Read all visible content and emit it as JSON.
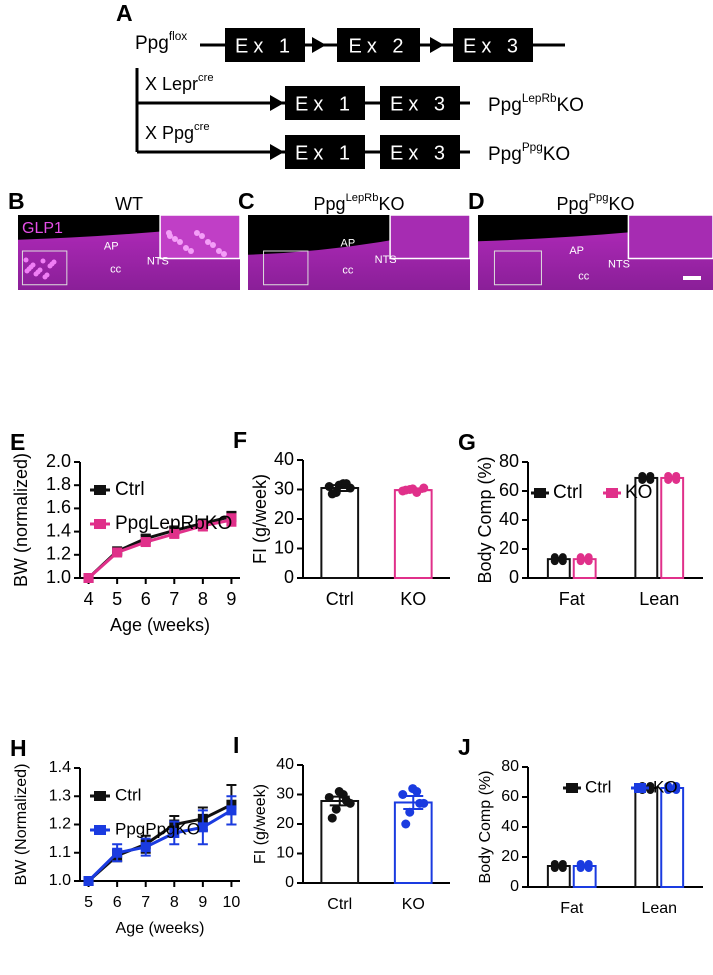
{
  "panel_a": {
    "label": "A",
    "flox": {
      "base": "Ppg",
      "sup": "flox"
    },
    "exons": [
      "Ex 1",
      "Ex 2",
      "Ex 3"
    ],
    "crosses": [
      {
        "prefix": "X Lepr",
        "sup": "cre",
        "exons": [
          "Ex 1",
          "Ex 3"
        ],
        "result": {
          "base": "Ppg",
          "sup": "LepRb",
          "suffix": "KO"
        }
      },
      {
        "prefix": "X Ppg",
        "sup": "cre",
        "exons": [
          "Ex 1",
          "Ex 3"
        ],
        "result": {
          "base": "Ppg",
          "sup": "Ppg",
          "suffix": "KO"
        }
      }
    ]
  },
  "micrographs": [
    {
      "label": "B",
      "title": {
        "base": "WT"
      },
      "stain": "GLP1",
      "regions": [
        "AP",
        "NTS",
        "cc"
      ]
    },
    {
      "label": "C",
      "title": {
        "base": "Ppg",
        "sup": "LepRb",
        "suffix": "KO"
      },
      "regions": [
        "AP",
        "NTS",
        "cc"
      ]
    },
    {
      "label": "D",
      "title": {
        "base": "Ppg",
        "sup": "Ppg",
        "suffix": "KO"
      },
      "regions": [
        "AP",
        "NTS",
        "cc"
      ]
    }
  ],
  "chart_data": [
    {
      "type": "line",
      "panel": "E",
      "x_label": "Age (weeks)",
      "y_label": "BW (normalized)",
      "x": [
        4,
        5,
        6,
        7,
        8,
        9
      ],
      "xlim": [
        3.7,
        9.3
      ],
      "xticks": [
        4,
        5,
        6,
        7,
        8,
        9
      ],
      "ylim": [
        1.0,
        2.0
      ],
      "yticks": [
        {
          "value": 1.0,
          "label": "1.0"
        },
        {
          "value": 1.2,
          "label": "1.2"
        },
        {
          "value": 1.4,
          "label": "1.4"
        },
        {
          "value": 1.6,
          "label": "1.6"
        },
        {
          "value": 1.8,
          "label": "1.8"
        },
        {
          "value": 2.0,
          "label": "2.0"
        }
      ],
      "series": [
        {
          "name": "Ctrl",
          "color": "#111111",
          "values": [
            1.0,
            1.23,
            1.34,
            1.41,
            1.47,
            1.53
          ],
          "errors": [
            0,
            0.02,
            0.03,
            0.03,
            0.03,
            0.04
          ]
        },
        {
          "name": "PpgLepRbKO",
          "color": "#e0308a",
          "values": [
            1.0,
            1.22,
            1.31,
            1.38,
            1.45,
            1.5
          ],
          "errors": [
            0,
            0.02,
            0.03,
            0.03,
            0.04,
            0.05
          ]
        }
      ]
    },
    {
      "type": "bar",
      "panel": "F",
      "y_label": "FI (g/week)",
      "categories": [
        "Ctrl",
        "KO"
      ],
      "values": [
        30.5,
        29.8
      ],
      "errors": [
        1.0,
        0.6
      ],
      "colors": [
        "#111111",
        "#e0308a"
      ],
      "points": [
        [
          31,
          29,
          32,
          30.5,
          28.5,
          31.5,
          32
        ],
        [
          29.5,
          30,
          29,
          30.5,
          29.8,
          30.2
        ]
      ],
      "ylim": [
        0,
        40
      ],
      "yticks": [
        0,
        10,
        20,
        30,
        40
      ]
    },
    {
      "type": "grouped_bar",
      "panel": "G",
      "y_label": "Body Comp (%)",
      "categories": [
        "Fat",
        "Lean"
      ],
      "ylim": [
        0,
        80
      ],
      "yticks": [
        0,
        20,
        40,
        60,
        80
      ],
      "series": [
        {
          "name": "Ctrl",
          "color": "#111111",
          "values": [
            13,
            69
          ],
          "errors": [
            1,
            1
          ]
        },
        {
          "name": "KO",
          "color": "#e0308a",
          "values": [
            13,
            69
          ],
          "errors": [
            1,
            1
          ]
        }
      ]
    },
    {
      "type": "line",
      "panel": "H",
      "x_label": "Age (weeks)",
      "y_label": "BW (Normalized)",
      "x": [
        5,
        6,
        7,
        8,
        9,
        10
      ],
      "xlim": [
        4.7,
        10.3
      ],
      "xticks": [
        5,
        6,
        7,
        8,
        9,
        10
      ],
      "ylim": [
        1.0,
        1.4
      ],
      "yticks": [
        {
          "value": 1.0,
          "label": "1.0"
        },
        {
          "value": 1.1,
          "label": "1.1"
        },
        {
          "value": 1.2,
          "label": "1.2"
        },
        {
          "value": 1.3,
          "label": "1.3"
        },
        {
          "value": 1.4,
          "label": "1.4"
        }
      ],
      "series": [
        {
          "name": "Ctrl",
          "color": "#111111",
          "values": [
            1.0,
            1.09,
            1.13,
            1.2,
            1.22,
            1.27
          ],
          "errors": [
            0,
            0.02,
            0.03,
            0.03,
            0.04,
            0.07
          ]
        },
        {
          "name": "PpgPpgKO",
          "color": "#1a3be0",
          "values": [
            1.0,
            1.1,
            1.12,
            1.17,
            1.19,
            1.25
          ],
          "errors": [
            0,
            0.03,
            0.03,
            0.04,
            0.06,
            0.05
          ]
        }
      ]
    },
    {
      "type": "bar",
      "panel": "I",
      "y_label": "FI (g/week)",
      "categories": [
        "Ctrl",
        "KO"
      ],
      "values": [
        27.8,
        27.3
      ],
      "errors": [
        1.5,
        2.2
      ],
      "colors": [
        "#111111",
        "#1a3be0"
      ],
      "points": [
        [
          29,
          25,
          30,
          27,
          22,
          31,
          28
        ],
        [
          30,
          24,
          31,
          27,
          20,
          32,
          27
        ]
      ],
      "ylim": [
        0,
        40
      ],
      "yticks": [
        0,
        10,
        20,
        30,
        40
      ]
    },
    {
      "type": "grouped_bar",
      "panel": "J",
      "y_label": "Body Comp (%)",
      "categories": [
        "Fat",
        "Lean"
      ],
      "ylim": [
        0,
        80
      ],
      "yticks": [
        0,
        20,
        40,
        60,
        80
      ],
      "series": [
        {
          "name": "Ctrl",
          "color": "#111111",
          "values": [
            14,
            66
          ],
          "errors": [
            1,
            1
          ]
        },
        {
          "name": "KO",
          "color": "#1a3be0",
          "values": [
            14,
            66
          ],
          "errors": [
            1,
            1
          ]
        }
      ]
    }
  ]
}
